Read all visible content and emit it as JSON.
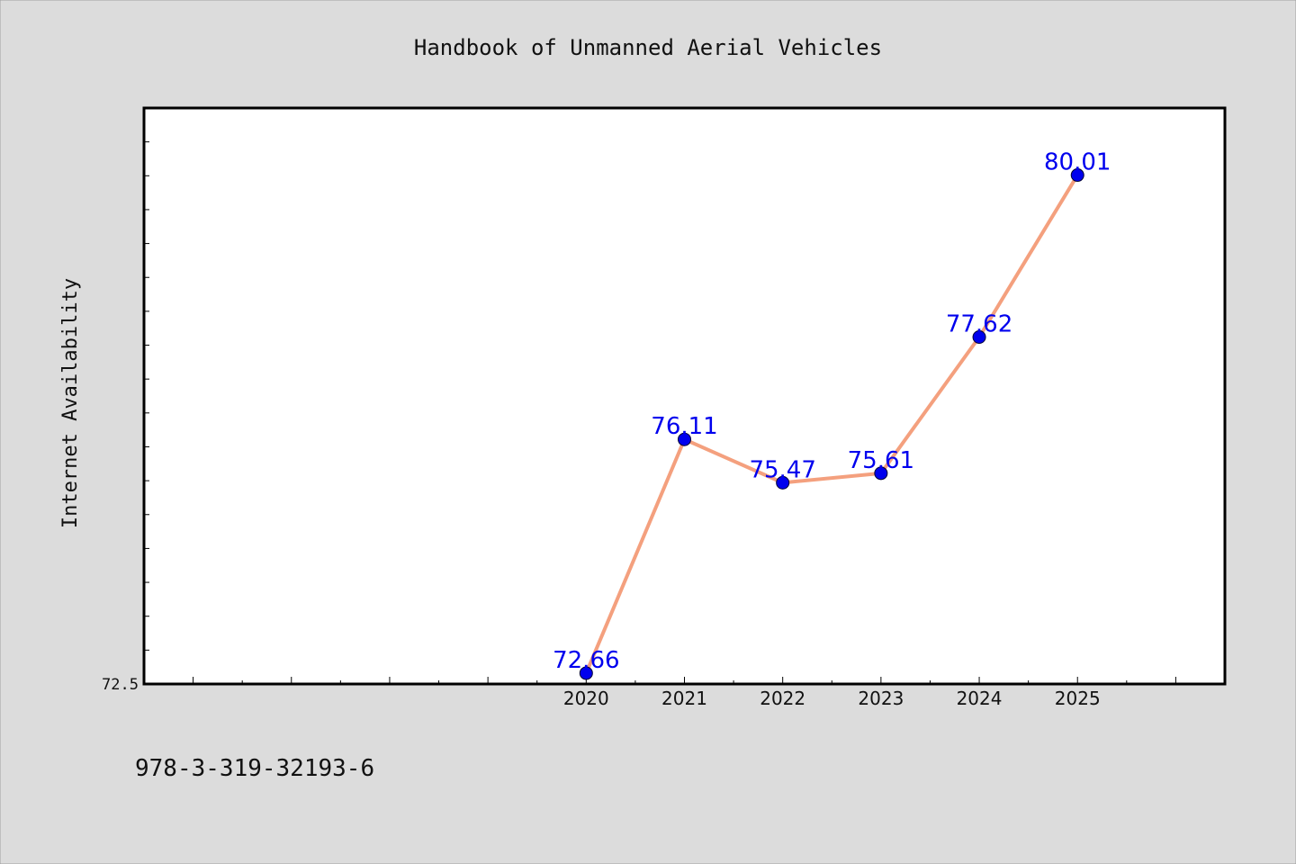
{
  "chart_data": {
    "type": "line",
    "title": "Handbook of Unmanned Aerial Vehicles",
    "ylabel": "Internet Availability",
    "xlabel": "",
    "x": [
      "2020",
      "2021",
      "2022",
      "2023",
      "2024",
      "2025"
    ],
    "series": [
      {
        "values": [
          72.66,
          76.11,
          75.47,
          75.61,
          77.62,
          80.01
        ]
      }
    ],
    "data_labels": [
      "72.66",
      "76.11",
      "75.47",
      "75.61",
      "77.62",
      "80.01"
    ],
    "x_range": [
      2015.5,
      2026.5
    ],
    "ylim": [
      72.5,
      81.0
    ],
    "y_tick_labels": [
      "72.5"
    ],
    "grid": false,
    "line_color": "#f4a07e",
    "marker_color": "#0000ee",
    "label_color": "#0000ee"
  },
  "footer_text": "978-3-319-32193-6"
}
